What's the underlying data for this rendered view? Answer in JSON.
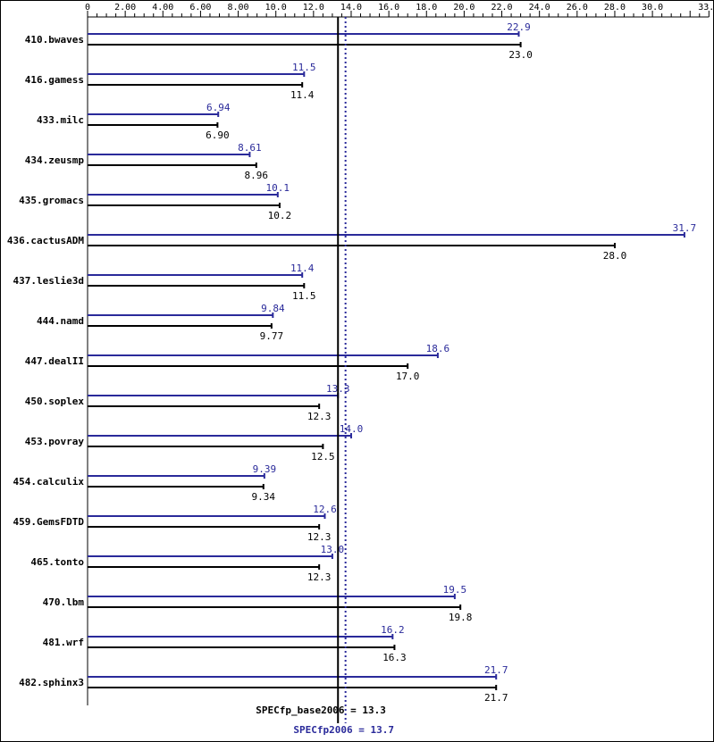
{
  "chart_data": {
    "type": "bar",
    "orientation": "horizontal",
    "x_ticks": [
      "0",
      "2.00",
      "4.00",
      "6.00",
      "8.00",
      "10.0",
      "12.0",
      "14.0",
      "16.0",
      "18.0",
      "20.0",
      "22.0",
      "24.0",
      "26.0",
      "28.0",
      "30.0",
      "33.0"
    ],
    "xlim": [
      0,
      33.0
    ],
    "grid": false,
    "colors": {
      "peak": "#2a2a9a",
      "base": "#000000"
    },
    "categories": [
      "410.bwaves",
      "416.gamess",
      "433.milc",
      "434.zeusmp",
      "435.gromacs",
      "436.cactusADM",
      "437.leslie3d",
      "444.namd",
      "447.dealII",
      "450.soplex",
      "453.povray",
      "454.calculix",
      "459.GemsFDTD",
      "465.tonto",
      "470.lbm",
      "481.wrf",
      "482.sphinx3"
    ],
    "series": [
      {
        "key": "peak",
        "values": [
          22.9,
          11.5,
          6.94,
          8.61,
          10.1,
          31.7,
          11.4,
          9.84,
          18.6,
          13.3,
          14.0,
          9.39,
          12.6,
          13.0,
          19.5,
          16.2,
          21.7
        ],
        "labels": [
          "22.9",
          "11.5",
          "6.94",
          "8.61",
          "10.1",
          "31.7",
          "11.4",
          "9.84",
          "18.6",
          "13.3",
          "14.0",
          "9.39",
          "12.6",
          "13.0",
          "19.5",
          "16.2",
          "21.7"
        ]
      },
      {
        "key": "base",
        "values": [
          23.0,
          11.4,
          6.9,
          8.96,
          10.2,
          28.0,
          11.5,
          9.77,
          17.0,
          12.3,
          12.5,
          9.34,
          12.3,
          12.3,
          19.8,
          16.3,
          21.7
        ],
        "labels": [
          "23.0",
          "11.4",
          "6.90",
          "8.96",
          "10.2",
          "28.0",
          "11.5",
          "9.77",
          "17.0",
          "12.3",
          "12.5",
          "9.34",
          "12.3",
          "12.3",
          "19.8",
          "16.3",
          "21.7"
        ]
      }
    ],
    "reference_lines": [
      {
        "key": "base",
        "value": 13.3,
        "label": "SPECfp_base2006 = 13.3",
        "style": "solid"
      },
      {
        "key": "peak",
        "value": 13.7,
        "label": "SPECfp2006 = 13.7",
        "style": "dotted"
      }
    ]
  }
}
